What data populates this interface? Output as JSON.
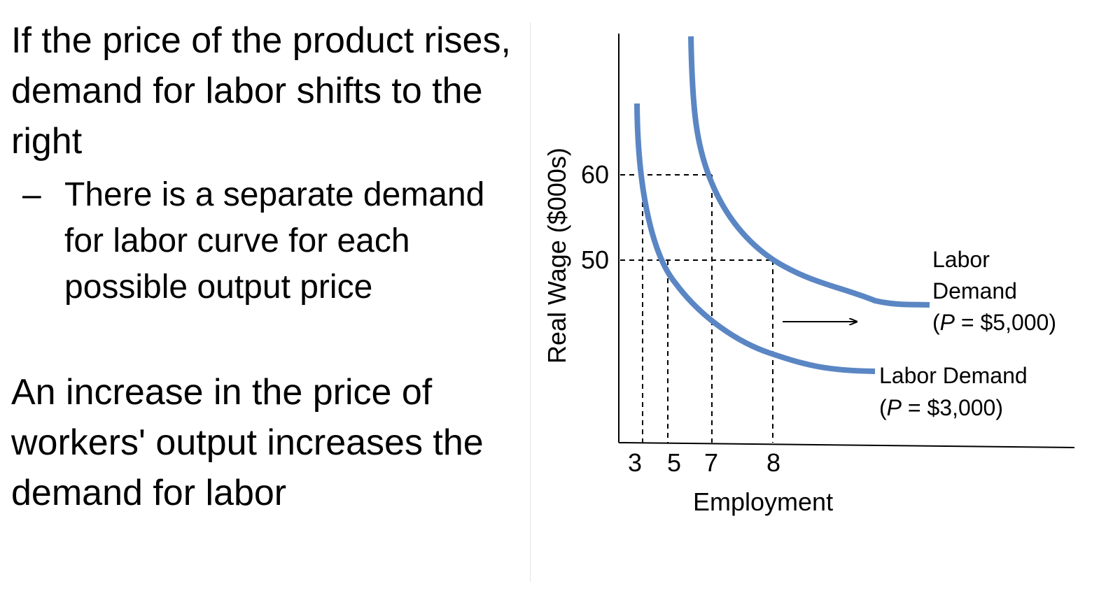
{
  "slide": {
    "bullet_1": "If the price of the product rises, demand for labor shifts to the right",
    "sub_bullet_dash": "–",
    "sub_bullet": "There is a separate demand for labor curve for each possible output price",
    "bullet_2": "An increase in the price of workers' output increases the demand for labor"
  },
  "chart_data": {
    "type": "line",
    "xlabel": "Employment",
    "ylabel": "Real Wage ($000s)",
    "x_ticks": [
      3,
      5,
      7,
      8
    ],
    "y_ticks": [
      50,
      60
    ],
    "series": [
      {
        "name": "Labor Demand (P = $3,000)",
        "label_line1": "Labor Demand",
        "label_line2_prefix": "(",
        "label_line2_var": "P",
        "label_line2_rest": " = $3,000)",
        "color": "#5b86c4",
        "points": [
          [
            3,
            60
          ],
          [
            5,
            50
          ],
          [
            8,
            42.5
          ]
        ]
      },
      {
        "name": "Labor Demand (P = $5,000)",
        "label_line1": "Labor",
        "label_line2": "Demand",
        "label_line3_prefix": "(",
        "label_line3_var": "P",
        "label_line3_rest": " = $5,000)",
        "color": "#5b86c4",
        "points": [
          [
            7,
            60
          ],
          [
            8,
            50
          ]
        ]
      }
    ],
    "shift_arrow": "right",
    "guide_lines": "dashed",
    "grid": false
  }
}
